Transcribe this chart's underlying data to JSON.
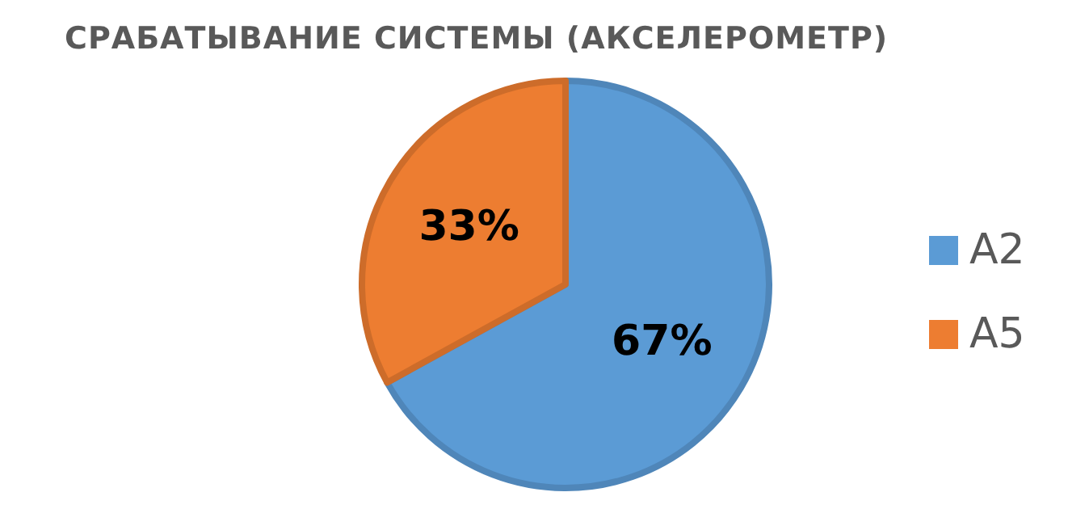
{
  "chart_data": {
    "type": "pie",
    "title": "СРАБАТЫВАНИЕ СИСТЕМЫ (АКСЕЛЕРОМЕТР)",
    "categories": [
      "A2",
      "A5"
    ],
    "values": [
      67,
      33
    ],
    "colors": [
      "#5b9bd5",
      "#ed7d31"
    ],
    "value_labels": [
      "67%",
      "33%"
    ],
    "legend": "right"
  }
}
